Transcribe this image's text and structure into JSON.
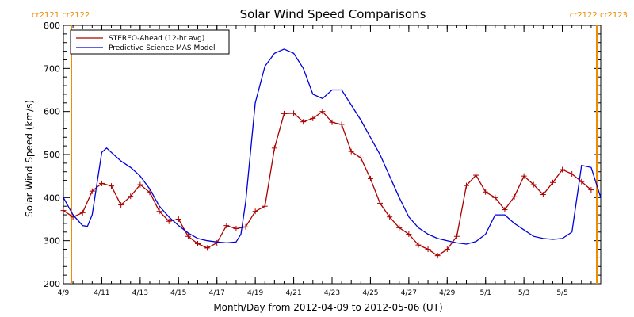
{
  "chart_data": {
    "type": "line",
    "title": "Solar Wind Speed Comparisons",
    "xlabel": "Month/Day from 2012-04-09 to 2012-05-06 (UT)",
    "ylabel": "Solar Wind Speed (km/s)",
    "ylim": [
      200,
      800
    ],
    "xlim": [
      "2012-04-09",
      "2012-05-07"
    ],
    "yticks": [
      200,
      300,
      400,
      500,
      600,
      700,
      800
    ],
    "xticks": [
      "4/9",
      "4/11",
      "4/13",
      "4/15",
      "4/17",
      "4/19",
      "4/21",
      "4/23",
      "4/25",
      "4/27",
      "4/29",
      "5/1",
      "5/3",
      "5/5"
    ],
    "legend_position": "top-left",
    "carrington_markers": {
      "left": "cr2121 cr2122",
      "right": "cr2122 cr2123",
      "color": "#f08c00"
    },
    "series": [
      {
        "name": "STEREO-Ahead (12-hr avg)",
        "color": "#aa0000",
        "marker": "+",
        "x": [
          "2012-04-09 00:00",
          "2012-04-09 12:00",
          "2012-04-10 00:00",
          "2012-04-10 12:00",
          "2012-04-11 00:00",
          "2012-04-11 12:00",
          "2012-04-12 00:00",
          "2012-04-12 12:00",
          "2012-04-13 00:00",
          "2012-04-13 12:00",
          "2012-04-14 00:00",
          "2012-04-14 12:00",
          "2012-04-15 00:00",
          "2012-04-15 12:00",
          "2012-04-16 00:00",
          "2012-04-16 12:00",
          "2012-04-17 00:00",
          "2012-04-17 12:00",
          "2012-04-18 00:00",
          "2012-04-18 12:00",
          "2012-04-19 00:00",
          "2012-04-19 12:00",
          "2012-04-20 00:00",
          "2012-04-20 12:00",
          "2012-04-21 00:00",
          "2012-04-21 12:00",
          "2012-04-22 00:00",
          "2012-04-22 12:00",
          "2012-04-23 00:00",
          "2012-04-23 12:00",
          "2012-04-24 00:00",
          "2012-04-24 12:00",
          "2012-04-25 00:00",
          "2012-04-25 12:00",
          "2012-04-26 00:00",
          "2012-04-26 12:00",
          "2012-04-27 00:00",
          "2012-04-27 12:00",
          "2012-04-28 00:00",
          "2012-04-28 12:00",
          "2012-04-29 00:00",
          "2012-04-29 12:00",
          "2012-04-30 00:00",
          "2012-04-30 12:00",
          "2012-05-01 00:00",
          "2012-05-01 12:00",
          "2012-05-02 00:00",
          "2012-05-02 12:00",
          "2012-05-03 00:00",
          "2012-05-03 12:00",
          "2012-05-04 00:00",
          "2012-05-04 12:00",
          "2012-05-05 00:00",
          "2012-05-05 12:00",
          "2012-05-06 00:00",
          "2012-05-06 12:00"
        ],
        "values": [
          370,
          355,
          365,
          415,
          433,
          427,
          383,
          403,
          430,
          412,
          368,
          345,
          350,
          310,
          293,
          283,
          295,
          335,
          328,
          332,
          368,
          380,
          515,
          595,
          596,
          576,
          584,
          600,
          575,
          570,
          507,
          492,
          444,
          387,
          355,
          330,
          315,
          290,
          280,
          265,
          280,
          310,
          428,
          452,
          413,
          400,
          372,
          402,
          450,
          430,
          407,
          435,
          465,
          455,
          437,
          418
        ]
      },
      {
        "name": "Predictive Science MAS Model",
        "color": "#0000dd",
        "x": [
          "2012-04-09 00:00",
          "2012-04-09 12:00",
          "2012-04-10 00:00",
          "2012-04-10 06:00",
          "2012-04-10 12:00",
          "2012-04-11 00:00",
          "2012-04-11 06:00",
          "2012-04-11 12:00",
          "2012-04-12 00:00",
          "2012-04-12 12:00",
          "2012-04-13 00:00",
          "2012-04-13 12:00",
          "2012-04-14 00:00",
          "2012-04-14 12:00",
          "2012-04-15 00:00",
          "2012-04-15 12:00",
          "2012-04-16 00:00",
          "2012-04-16 12:00",
          "2012-04-17 00:00",
          "2012-04-17 12:00",
          "2012-04-18 00:00",
          "2012-04-18 06:00",
          "2012-04-18 12:00",
          "2012-04-19 00:00",
          "2012-04-19 12:00",
          "2012-04-20 00:00",
          "2012-04-20 12:00",
          "2012-04-21 00:00",
          "2012-04-21 12:00",
          "2012-04-22 00:00",
          "2012-04-22 12:00",
          "2012-04-23 00:00",
          "2012-04-23 12:00",
          "2012-04-24 00:00",
          "2012-04-24 12:00",
          "2012-04-25 00:00",
          "2012-04-25 12:00",
          "2012-04-26 00:00",
          "2012-04-26 12:00",
          "2012-04-27 00:00",
          "2012-04-27 12:00",
          "2012-04-28 00:00",
          "2012-04-28 12:00",
          "2012-04-29 00:00",
          "2012-04-29 12:00",
          "2012-04-30 00:00",
          "2012-04-30 12:00",
          "2012-05-01 00:00",
          "2012-05-01 12:00",
          "2012-05-02 00:00",
          "2012-05-02 12:00",
          "2012-05-03 00:00",
          "2012-05-03 12:00",
          "2012-05-04 00:00",
          "2012-05-04 12:00",
          "2012-05-05 00:00",
          "2012-05-05 12:00",
          "2012-05-06 00:00",
          "2012-05-06 12:00",
          "2012-05-07 00:00"
        ],
        "values": [
          400,
          360,
          335,
          333,
          360,
          505,
          515,
          505,
          485,
          470,
          450,
          420,
          380,
          355,
          335,
          318,
          305,
          300,
          297,
          295,
          297,
          315,
          390,
          620,
          705,
          735,
          745,
          735,
          700,
          640,
          630,
          650,
          650,
          615,
          580,
          540,
          500,
          450,
          400,
          355,
          330,
          315,
          305,
          300,
          295,
          292,
          298,
          315,
          360,
          360,
          340,
          325,
          310,
          305,
          303,
          305,
          320,
          475,
          470,
          400
        ]
      }
    ]
  }
}
